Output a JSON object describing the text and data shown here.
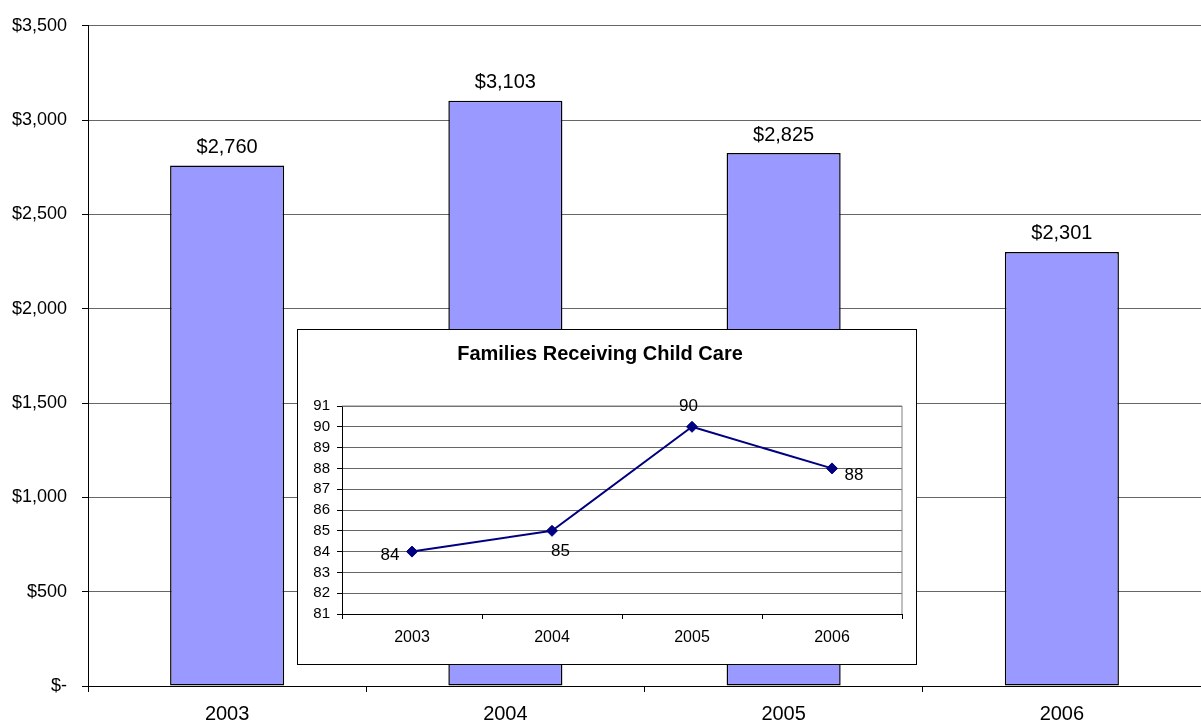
{
  "chart_data": [
    {
      "type": "bar",
      "categories": [
        "2003",
        "2004",
        "2005",
        "2006"
      ],
      "values": [
        2760,
        3103,
        2825,
        2301
      ],
      "color": "#9999ff",
      "value_labels": [
        "$2,760",
        "$3,103",
        "$2,825",
        "$2,301"
      ],
      "ylim": [
        0,
        3500
      ],
      "yticks": [
        {
          "value": 0,
          "label": "$-"
        },
        {
          "value": 500,
          "label": "$500"
        },
        {
          "value": 1000,
          "label": "$1,000"
        },
        {
          "value": 1500,
          "label": "$1,500"
        },
        {
          "value": 2000,
          "label": "$2,000"
        },
        {
          "value": 2500,
          "label": "$2,500"
        },
        {
          "value": 3000,
          "label": "$3,000"
        },
        {
          "value": 3500,
          "label": "$3,500"
        }
      ],
      "grid": "y"
    },
    {
      "type": "line",
      "title": "Families Receiving Child Care",
      "categories": [
        "2003",
        "2004",
        "2005",
        "2006"
      ],
      "values": [
        84,
        85,
        90,
        88
      ],
      "color": "#000080",
      "ylim": [
        81,
        91
      ],
      "yticks": [
        81,
        82,
        83,
        84,
        85,
        86,
        87,
        88,
        89,
        90,
        91
      ],
      "grid": "y",
      "marker": "diamond",
      "data_labels": true
    }
  ]
}
